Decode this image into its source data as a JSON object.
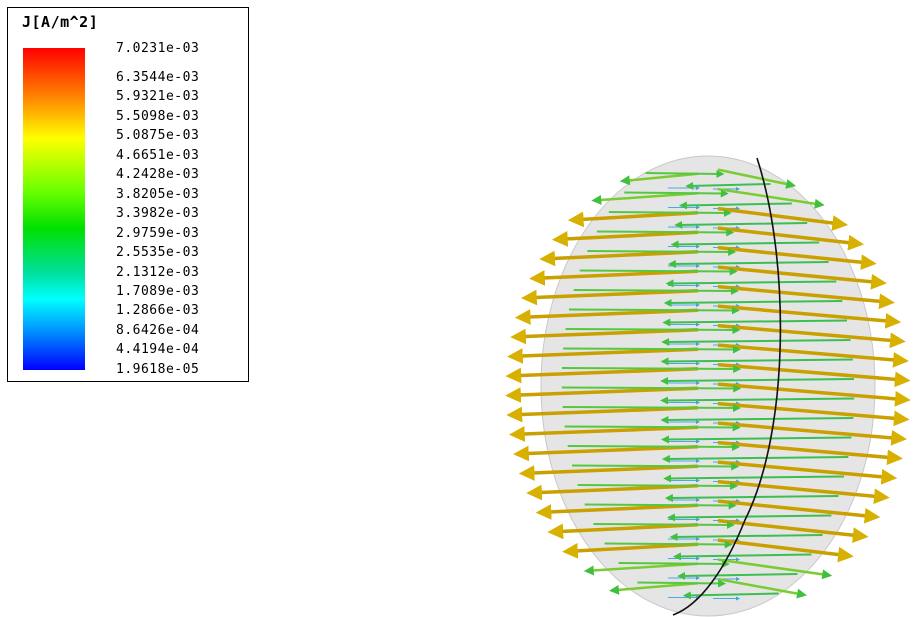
{
  "legend": {
    "title": "J[A/m^2]",
    "ticks": [
      "7.0231e-03",
      "6.3544e-03",
      "5.9321e-03",
      "5.5098e-03",
      "5.0875e-03",
      "4.6651e-03",
      "4.2428e-03",
      "3.8205e-03",
      "3.3982e-03",
      "2.9759e-03",
      "2.5535e-03",
      "2.1312e-03",
      "1.7089e-03",
      "1.2866e-03",
      "8.6426e-04",
      "4.4194e-04",
      "1.9618e-05"
    ]
  },
  "colors": {
    "high": "#ff0000",
    "mid": "#00e000",
    "low": "#0000ff",
    "shell": "#d6d6d6",
    "arrow_outer": "#d4a800",
    "arrow_inner": "#3cc060"
  }
}
